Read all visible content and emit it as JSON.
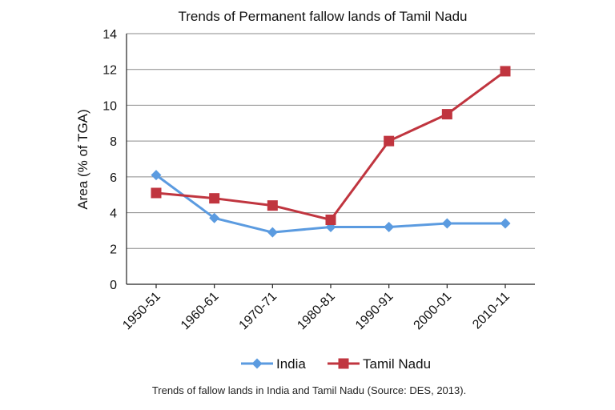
{
  "chart_data": {
    "type": "line",
    "title": "Trends of Permanent fallow lands of Tamil Nadu",
    "xlabel": "",
    "ylabel": "Area (% of TGA)",
    "categories": [
      "1950-51",
      "1960-61",
      "1970-71",
      "1980-81",
      "1990-91",
      "2000-01",
      "2010-11"
    ],
    "ylim": [
      0,
      14
    ],
    "yticks": [
      0,
      2,
      4,
      6,
      8,
      10,
      12,
      14
    ],
    "grid": true,
    "legend_position": "bottom",
    "series": [
      {
        "name": "India",
        "color": "#5b9be0",
        "marker": "diamond",
        "values": [
          6.1,
          3.7,
          2.9,
          3.2,
          3.2,
          3.4,
          3.4
        ]
      },
      {
        "name": "Tamil Nadu",
        "color": "#c0353f",
        "marker": "square",
        "values": [
          5.1,
          4.8,
          4.4,
          3.6,
          8.0,
          9.5,
          11.9
        ]
      }
    ]
  },
  "caption": "Trends of fallow lands in India and Tamil Nadu (Source: DES, 2013)."
}
